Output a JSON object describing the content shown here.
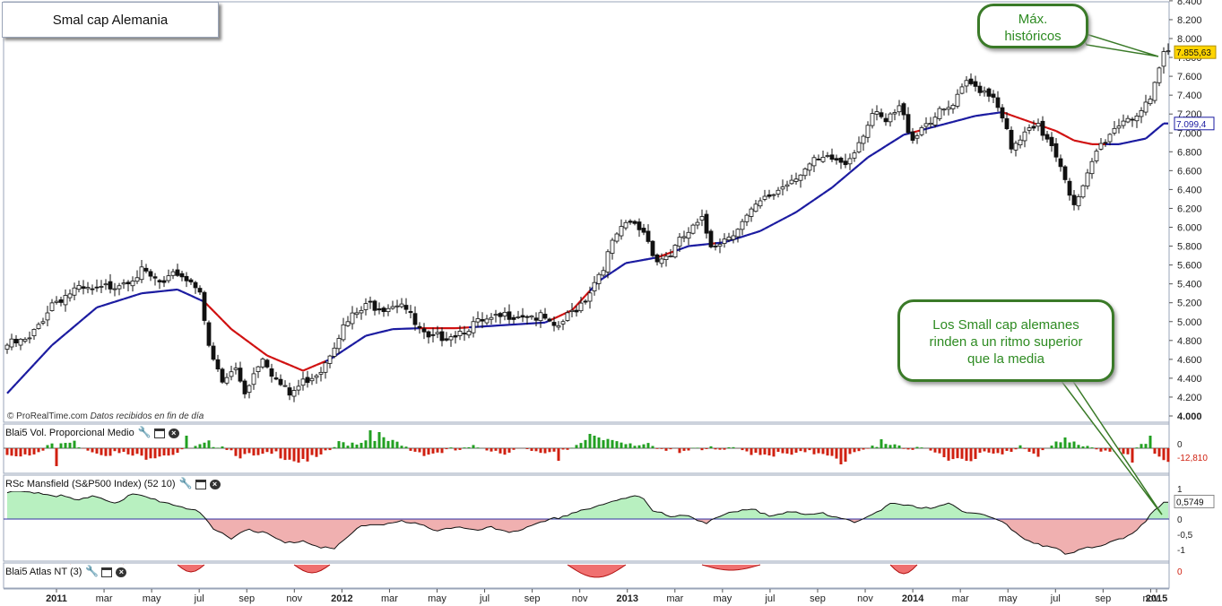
{
  "window": {
    "title": "Smal cap Alemania",
    "credit_site": "© ProRealTime.com",
    "credit_text": "Datos recibidos en fin de día"
  },
  "colors": {
    "up_candle": "#ffffff",
    "down_candle": "#111111",
    "ma_above": "#1a1aa0",
    "ma_below": "#d01010",
    "vol_positive": "#22a022",
    "vol_negative": "#d02010",
    "rsc_positive_fill": "#b8f0c0",
    "rsc_negative_fill": "#f0b0b0",
    "callout_border": "#3a7a28",
    "callout_text": "#2e8b22",
    "price_tag": "#ffd400",
    "ma_tag": "#1a1aa0"
  },
  "annotations": {
    "max_callout": "Máx. históricos",
    "outperform_callout": "Los Small cap alemanes rinden a un ritmo superior que la media"
  },
  "panels": {
    "volume": {
      "label": "Blai5 Vol. Proporcional Medio",
      "ticks": [
        "0"
      ],
      "last_value": "-12,810"
    },
    "rsc": {
      "label": "RSc Mansfield (S&P500 Index) (52 10)",
      "ticks": [
        "1",
        "0,5",
        "0",
        "-0,5",
        "-1"
      ],
      "last_value": "0,5749"
    },
    "atlas": {
      "label": "Blai5 Atlas NT (3)",
      "ticks": [
        "0"
      ]
    }
  },
  "chart_data": {
    "type": "candlestick",
    "title": "Smal cap Alemania",
    "period": "weekly",
    "x_labels": [
      "2011",
      "mar",
      "may",
      "jul",
      "sep",
      "nov",
      "2012",
      "mar",
      "may",
      "jul",
      "sep",
      "nov",
      "2013",
      "mar",
      "may",
      "jul",
      "sep",
      "nov",
      "2014",
      "mar",
      "may",
      "jul",
      "sep",
      "nov",
      "2015"
    ],
    "y_ticks": [
      "4.000",
      "4.200",
      "4.400",
      "4.600",
      "4.800",
      "5.000",
      "5.200",
      "5.400",
      "5.600",
      "5.800",
      "6.000",
      "6.200",
      "6.400",
      "6.600",
      "6.800",
      "7.000",
      "7.200",
      "7.400",
      "7.600",
      "7.800",
      "8.000",
      "8.200",
      "8.400"
    ],
    "ylim": [
      4000,
      8400
    ],
    "last_price": "7.855,63",
    "moving_average_last": "7.099,4",
    "price_anchors": [
      [
        0,
        4750
      ],
      [
        5,
        4800
      ],
      [
        10,
        5200
      ],
      [
        15,
        5330
      ],
      [
        20,
        5320
      ],
      [
        25,
        5420
      ],
      [
        30,
        5520
      ],
      [
        35,
        5380
      ],
      [
        38,
        5520
      ],
      [
        43,
        5360
      ],
      [
        45,
        4700
      ],
      [
        48,
        4350
      ],
      [
        51,
        4500
      ],
      [
        53,
        4260
      ],
      [
        57,
        4650
      ],
      [
        60,
        4380
      ],
      [
        63,
        4220
      ],
      [
        67,
        4400
      ],
      [
        70,
        4500
      ],
      [
        74,
        4870
      ],
      [
        77,
        5050
      ],
      [
        81,
        5180
      ],
      [
        84,
        5160
      ],
      [
        88,
        5220
      ],
      [
        91,
        4960
      ],
      [
        94,
        4790
      ],
      [
        97,
        4850
      ],
      [
        100,
        4880
      ],
      [
        104,
        4970
      ],
      [
        108,
        5000
      ],
      [
        112,
        5080
      ],
      [
        116,
        5080
      ],
      [
        120,
        5020
      ],
      [
        122,
        4900
      ],
      [
        125,
        5050
      ],
      [
        129,
        5250
      ],
      [
        133,
        5600
      ],
      [
        136,
        5920
      ],
      [
        139,
        6040
      ],
      [
        142,
        5960
      ],
      [
        145,
        5650
      ],
      [
        148,
        5720
      ],
      [
        151,
        5900
      ],
      [
        155,
        6060
      ],
      [
        157,
        5820
      ],
      [
        160,
        5880
      ],
      [
        164,
        6050
      ],
      [
        168,
        6250
      ],
      [
        172,
        6400
      ],
      [
        176,
        6560
      ],
      [
        180,
        6680
      ],
      [
        184,
        6720
      ],
      [
        187,
        6680
      ],
      [
        190,
        6920
      ],
      [
        193,
        7200
      ],
      [
        196,
        7100
      ],
      [
        199,
        7260
      ],
      [
        202,
        6950
      ],
      [
        205,
        7120
      ],
      [
        208,
        7200
      ],
      [
        211,
        7280
      ],
      [
        214,
        7520
      ],
      [
        217,
        7480
      ],
      [
        220,
        7400
      ],
      [
        222,
        7200
      ],
      [
        224,
        6800
      ],
      [
        227,
        6980
      ],
      [
        230,
        7050
      ],
      [
        233,
        6900
      ],
      [
        236,
        6550
      ],
      [
        238,
        6200
      ],
      [
        240,
        6400
      ],
      [
        243,
        6800
      ],
      [
        246,
        7000
      ],
      [
        249,
        7150
      ],
      [
        252,
        7200
      ],
      [
        255,
        7300
      ],
      [
        258,
        7850
      ]
    ],
    "ma_anchors": [
      [
        0,
        4240
      ],
      [
        10,
        4750
      ],
      [
        20,
        5150
      ],
      [
        30,
        5300
      ],
      [
        38,
        5340
      ],
      [
        44,
        5210
      ],
      [
        50,
        4920
      ],
      [
        58,
        4640
      ],
      [
        66,
        4480
      ],
      [
        72,
        4600
      ],
      [
        80,
        4850
      ],
      [
        86,
        4920
      ],
      [
        92,
        4930
      ],
      [
        100,
        4930
      ],
      [
        110,
        4960
      ],
      [
        120,
        4990
      ],
      [
        126,
        5120
      ],
      [
        132,
        5430
      ],
      [
        138,
        5620
      ],
      [
        145,
        5680
      ],
      [
        152,
        5800
      ],
      [
        160,
        5840
      ],
      [
        168,
        5960
      ],
      [
        176,
        6160
      ],
      [
        184,
        6420
      ],
      [
        192,
        6740
      ],
      [
        200,
        6980
      ],
      [
        208,
        7080
      ],
      [
        216,
        7180
      ],
      [
        222,
        7220
      ],
      [
        228,
        7120
      ],
      [
        234,
        7020
      ],
      [
        238,
        6920
      ],
      [
        242,
        6880
      ],
      [
        248,
        6880
      ],
      [
        254,
        6940
      ],
      [
        258,
        7100
      ]
    ],
    "volume_anchors": [
      [
        0,
        -8
      ],
      [
        5,
        -6
      ],
      [
        10,
        5
      ],
      [
        15,
        6
      ],
      [
        20,
        -4
      ],
      [
        25,
        -6
      ],
      [
        30,
        -10
      ],
      [
        35,
        -6
      ],
      [
        40,
        -4
      ],
      [
        45,
        5
      ],
      [
        48,
        4
      ],
      [
        52,
        -8
      ],
      [
        56,
        -10
      ],
      [
        60,
        -6
      ],
      [
        65,
        -14
      ],
      [
        70,
        -10
      ],
      [
        74,
        5
      ],
      [
        78,
        7
      ],
      [
        82,
        12
      ],
      [
        86,
        6
      ],
      [
        90,
        -2
      ],
      [
        94,
        -6
      ],
      [
        98,
        -3
      ],
      [
        102,
        -2
      ],
      [
        106,
        2
      ],
      [
        110,
        -4
      ],
      [
        114,
        -2
      ],
      [
        118,
        -6
      ],
      [
        122,
        -3
      ],
      [
        126,
        3
      ],
      [
        130,
        6
      ],
      [
        134,
        10
      ],
      [
        138,
        8
      ],
      [
        142,
        4
      ],
      [
        146,
        -4
      ],
      [
        150,
        -2
      ],
      [
        154,
        2
      ],
      [
        158,
        -3
      ],
      [
        162,
        -2
      ],
      [
        166,
        -4
      ],
      [
        170,
        -6
      ],
      [
        174,
        -8
      ],
      [
        178,
        -6
      ],
      [
        182,
        -4
      ],
      [
        186,
        -10
      ],
      [
        190,
        -6
      ],
      [
        194,
        4
      ],
      [
        198,
        6
      ],
      [
        202,
        -2
      ],
      [
        206,
        -4
      ],
      [
        210,
        -10
      ],
      [
        214,
        -12
      ],
      [
        218,
        -6
      ],
      [
        222,
        -8
      ],
      [
        226,
        4
      ],
      [
        230,
        -6
      ],
      [
        234,
        4
      ],
      [
        238,
        6
      ],
      [
        242,
        2
      ],
      [
        246,
        -4
      ],
      [
        250,
        -8
      ],
      [
        254,
        6
      ],
      [
        258,
        -13
      ]
    ],
    "volume_spikes": [
      [
        11,
        -20
      ],
      [
        40,
        14
      ],
      [
        66,
        -12
      ],
      [
        81,
        20
      ],
      [
        83,
        18
      ],
      [
        123,
        -14
      ],
      [
        130,
        16
      ],
      [
        131,
        14
      ],
      [
        132,
        12
      ],
      [
        186,
        -18
      ],
      [
        187,
        -15
      ],
      [
        195,
        10
      ],
      [
        236,
        12
      ],
      [
        251,
        -16
      ],
      [
        255,
        14
      ]
    ],
    "rsc_anchors": [
      [
        0,
        0.85
      ],
      [
        6,
        0.9
      ],
      [
        12,
        0.75
      ],
      [
        16,
        0.6
      ],
      [
        20,
        0.75
      ],
      [
        24,
        0.55
      ],
      [
        28,
        0.8
      ],
      [
        34,
        0.6
      ],
      [
        38,
        0.45
      ],
      [
        42,
        0.3
      ],
      [
        44,
        0
      ],
      [
        46,
        -0.35
      ],
      [
        50,
        -0.6
      ],
      [
        54,
        -0.3
      ],
      [
        58,
        -0.5
      ],
      [
        62,
        -0.8
      ],
      [
        66,
        -0.7
      ],
      [
        70,
        -0.9
      ],
      [
        73,
        -1.0
      ],
      [
        76,
        -0.6
      ],
      [
        79,
        -0.2
      ],
      [
        84,
        -0.15
      ],
      [
        88,
        -0.1
      ],
      [
        92,
        -0.2
      ],
      [
        96,
        -0.35
      ],
      [
        100,
        -0.25
      ],
      [
        104,
        -0.4
      ],
      [
        108,
        -0.3
      ],
      [
        112,
        -0.4
      ],
      [
        116,
        -0.3
      ],
      [
        120,
        -0.1
      ],
      [
        124,
        0.1
      ],
      [
        128,
        0.3
      ],
      [
        132,
        0.4
      ],
      [
        136,
        0.6
      ],
      [
        140,
        0.8
      ],
      [
        142,
        0.7
      ],
      [
        144,
        0.3
      ],
      [
        148,
        0.05
      ],
      [
        152,
        0.1
      ],
      [
        156,
        -0.1
      ],
      [
        158,
        0.05
      ],
      [
        162,
        0.2
      ],
      [
        166,
        0.3
      ],
      [
        170,
        0.15
      ],
      [
        174,
        0.25
      ],
      [
        178,
        0.1
      ],
      [
        182,
        0.2
      ],
      [
        186,
        0.05
      ],
      [
        190,
        -0.1
      ],
      [
        194,
        0.2
      ],
      [
        198,
        0.55
      ],
      [
        202,
        0.45
      ],
      [
        206,
        0.3
      ],
      [
        210,
        0.5
      ],
      [
        214,
        0.25
      ],
      [
        218,
        0.15
      ],
      [
        222,
        -0.1
      ],
      [
        226,
        -0.6
      ],
      [
        230,
        -0.8
      ],
      [
        234,
        -0.95
      ],
      [
        236,
        -1.2
      ],
      [
        240,
        -1.0
      ],
      [
        244,
        -0.85
      ],
      [
        248,
        -0.6
      ],
      [
        250,
        -0.6
      ],
      [
        252,
        -0.4
      ],
      [
        254,
        -0.1
      ],
      [
        256,
        0.3
      ],
      [
        258,
        0.57
      ]
    ],
    "atlas_humps": [
      [
        14,
        26,
        14
      ],
      [
        38,
        44,
        8
      ],
      [
        64,
        72,
        9
      ],
      [
        125,
        138,
        14
      ],
      [
        155,
        168,
        6
      ],
      [
        197,
        203,
        10
      ]
    ]
  }
}
